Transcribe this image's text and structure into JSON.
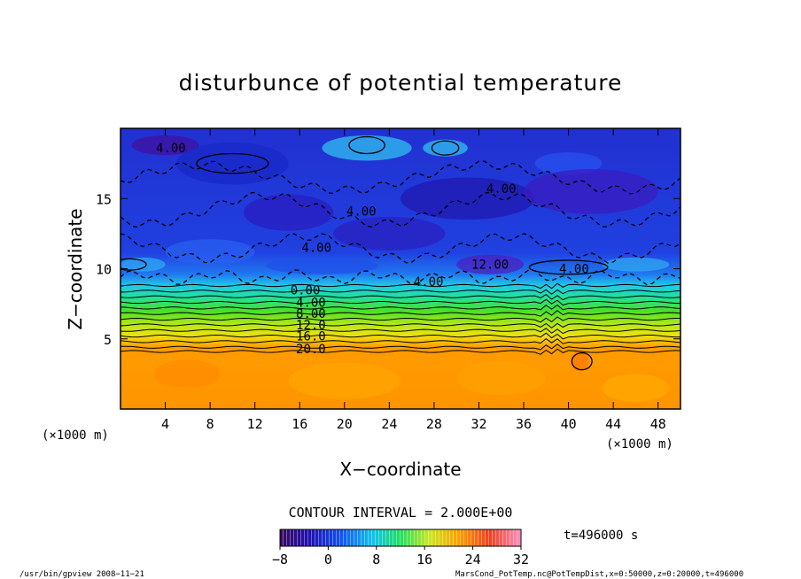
{
  "chart_data": {
    "type": "heatmap",
    "title": "disturbunce of potential temperature",
    "xlabel": "X−coordinate",
    "ylabel": "Z−coordinate",
    "x_unit_left": "(×1000 m)",
    "x_unit_right": "(×1000 m)",
    "xlim": [
      0,
      50
    ],
    "ylim": [
      0,
      20
    ],
    "x_ticks": [
      4,
      8,
      12,
      16,
      20,
      24,
      28,
      32,
      36,
      40,
      44,
      48
    ],
    "y_ticks": [
      5,
      10,
      15
    ],
    "contour_interval_text": "CONTOUR INTERVAL = 2.000E+00",
    "colorbar": {
      "min": -8,
      "max": 32,
      "ticks": [
        -8,
        0,
        8,
        16,
        24,
        32
      ]
    },
    "contour_labels": [
      {
        "x": 4.5,
        "z": 18.6,
        "text": "4.00"
      },
      {
        "x": 34.0,
        "z": 15.7,
        "text": "4.00"
      },
      {
        "x": 21.5,
        "z": 14.1,
        "text": "4.00"
      },
      {
        "x": 17.5,
        "z": 11.5,
        "text": "4.00"
      },
      {
        "x": 40.5,
        "z": 10.0,
        "text": "4.00"
      },
      {
        "x": 27.5,
        "z": 9.1,
        "text": "4.00"
      },
      {
        "x": 33.0,
        "z": 10.3,
        "text": "12.00"
      },
      {
        "x": 16.5,
        "z": 8.5,
        "text": "0.00"
      },
      {
        "x": 17.0,
        "z": 7.6,
        "text": "4.00"
      },
      {
        "x": 17.0,
        "z": 6.8,
        "text": "8.00"
      },
      {
        "x": 17.0,
        "z": 6.0,
        "text": "12.0"
      },
      {
        "x": 17.0,
        "z": 5.2,
        "text": "16.0"
      },
      {
        "x": 17.0,
        "z": 4.3,
        "text": "20.0"
      }
    ],
    "time_label": "t=496000 s",
    "footer_left": "/usr/bin/gpview   2008−11−21",
    "footer_right": "MarsCond_PotTemp.nc@PotTempDist,x=0:50000,z=0:20000,t=496000",
    "colors": {
      "cold": "#1028d8",
      "cyan": "#10d8e8",
      "green": "#30d820",
      "yellow": "#e8e810",
      "orange": "#ff9600",
      "purple": "#5a12b8"
    }
  }
}
